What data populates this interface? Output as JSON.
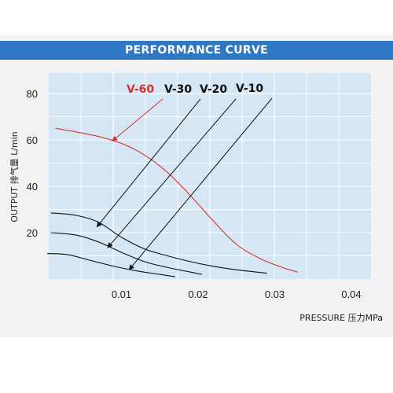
{
  "header": {
    "title": "PERFORMANCE CURVE"
  },
  "colors": {
    "header_bg": "#2e77c2",
    "plot_bg": "#d5e6f5",
    "highlight": "#d9312a",
    "curve": "#111111"
  },
  "chart_data": {
    "type": "line",
    "title": "PERFORMANCE CURVE",
    "xlabel": "PRESSURE 压力MPa",
    "ylabel": "OUTPUT 排气量 L/min",
    "xlim": [
      0.0,
      0.042
    ],
    "ylim": [
      0,
      90
    ],
    "x_ticks": [
      "0.01",
      "0.02",
      "0.03",
      "0.04"
    ],
    "y_ticks": [
      "20",
      "40",
      "60",
      "80"
    ],
    "grid": true,
    "series": [
      {
        "name": "V-60",
        "color": "#d9312a",
        "x": [
          0.0014,
          0.004,
          0.007,
          0.01,
          0.013,
          0.016,
          0.019,
          0.022,
          0.025,
          0.028,
          0.031,
          0.033
        ],
        "y": [
          65,
          63.5,
          61.5,
          58.5,
          53.5,
          46,
          36,
          25,
          15,
          9,
          5,
          3
        ]
      },
      {
        "name": "V-30",
        "color": "#111111",
        "x": [
          0.0008,
          0.004,
          0.007,
          0.01,
          0.013,
          0.016,
          0.019,
          0.022,
          0.025,
          0.029
        ],
        "y": [
          28.5,
          27.5,
          24.5,
          18,
          13,
          10,
          7.5,
          5.5,
          4,
          2.5
        ]
      },
      {
        "name": "V-20",
        "color": "#111111",
        "x": [
          0.0008,
          0.004,
          0.007,
          0.01,
          0.013,
          0.016,
          0.019,
          0.0205
        ],
        "y": [
          20,
          19,
          16,
          11.5,
          7.5,
          5,
          3,
          2
        ]
      },
      {
        "name": "V-10",
        "color": "#111111",
        "x": [
          0.0003,
          0.003,
          0.006,
          0.009,
          0.012,
          0.015,
          0.017
        ],
        "y": [
          11,
          10.5,
          8,
          5.5,
          3.5,
          2,
          1
        ]
      }
    ],
    "annotations": [
      {
        "label": "V-60",
        "arrow_to": [
          0.0088,
          59.5
        ]
      },
      {
        "label": "V-30",
        "arrow_to": [
          0.0068,
          22.5
        ]
      },
      {
        "label": "V-20",
        "arrow_to": [
          0.0082,
          13.5
        ]
      },
      {
        "label": "V-10",
        "arrow_to": [
          0.011,
          4
        ]
      }
    ]
  }
}
